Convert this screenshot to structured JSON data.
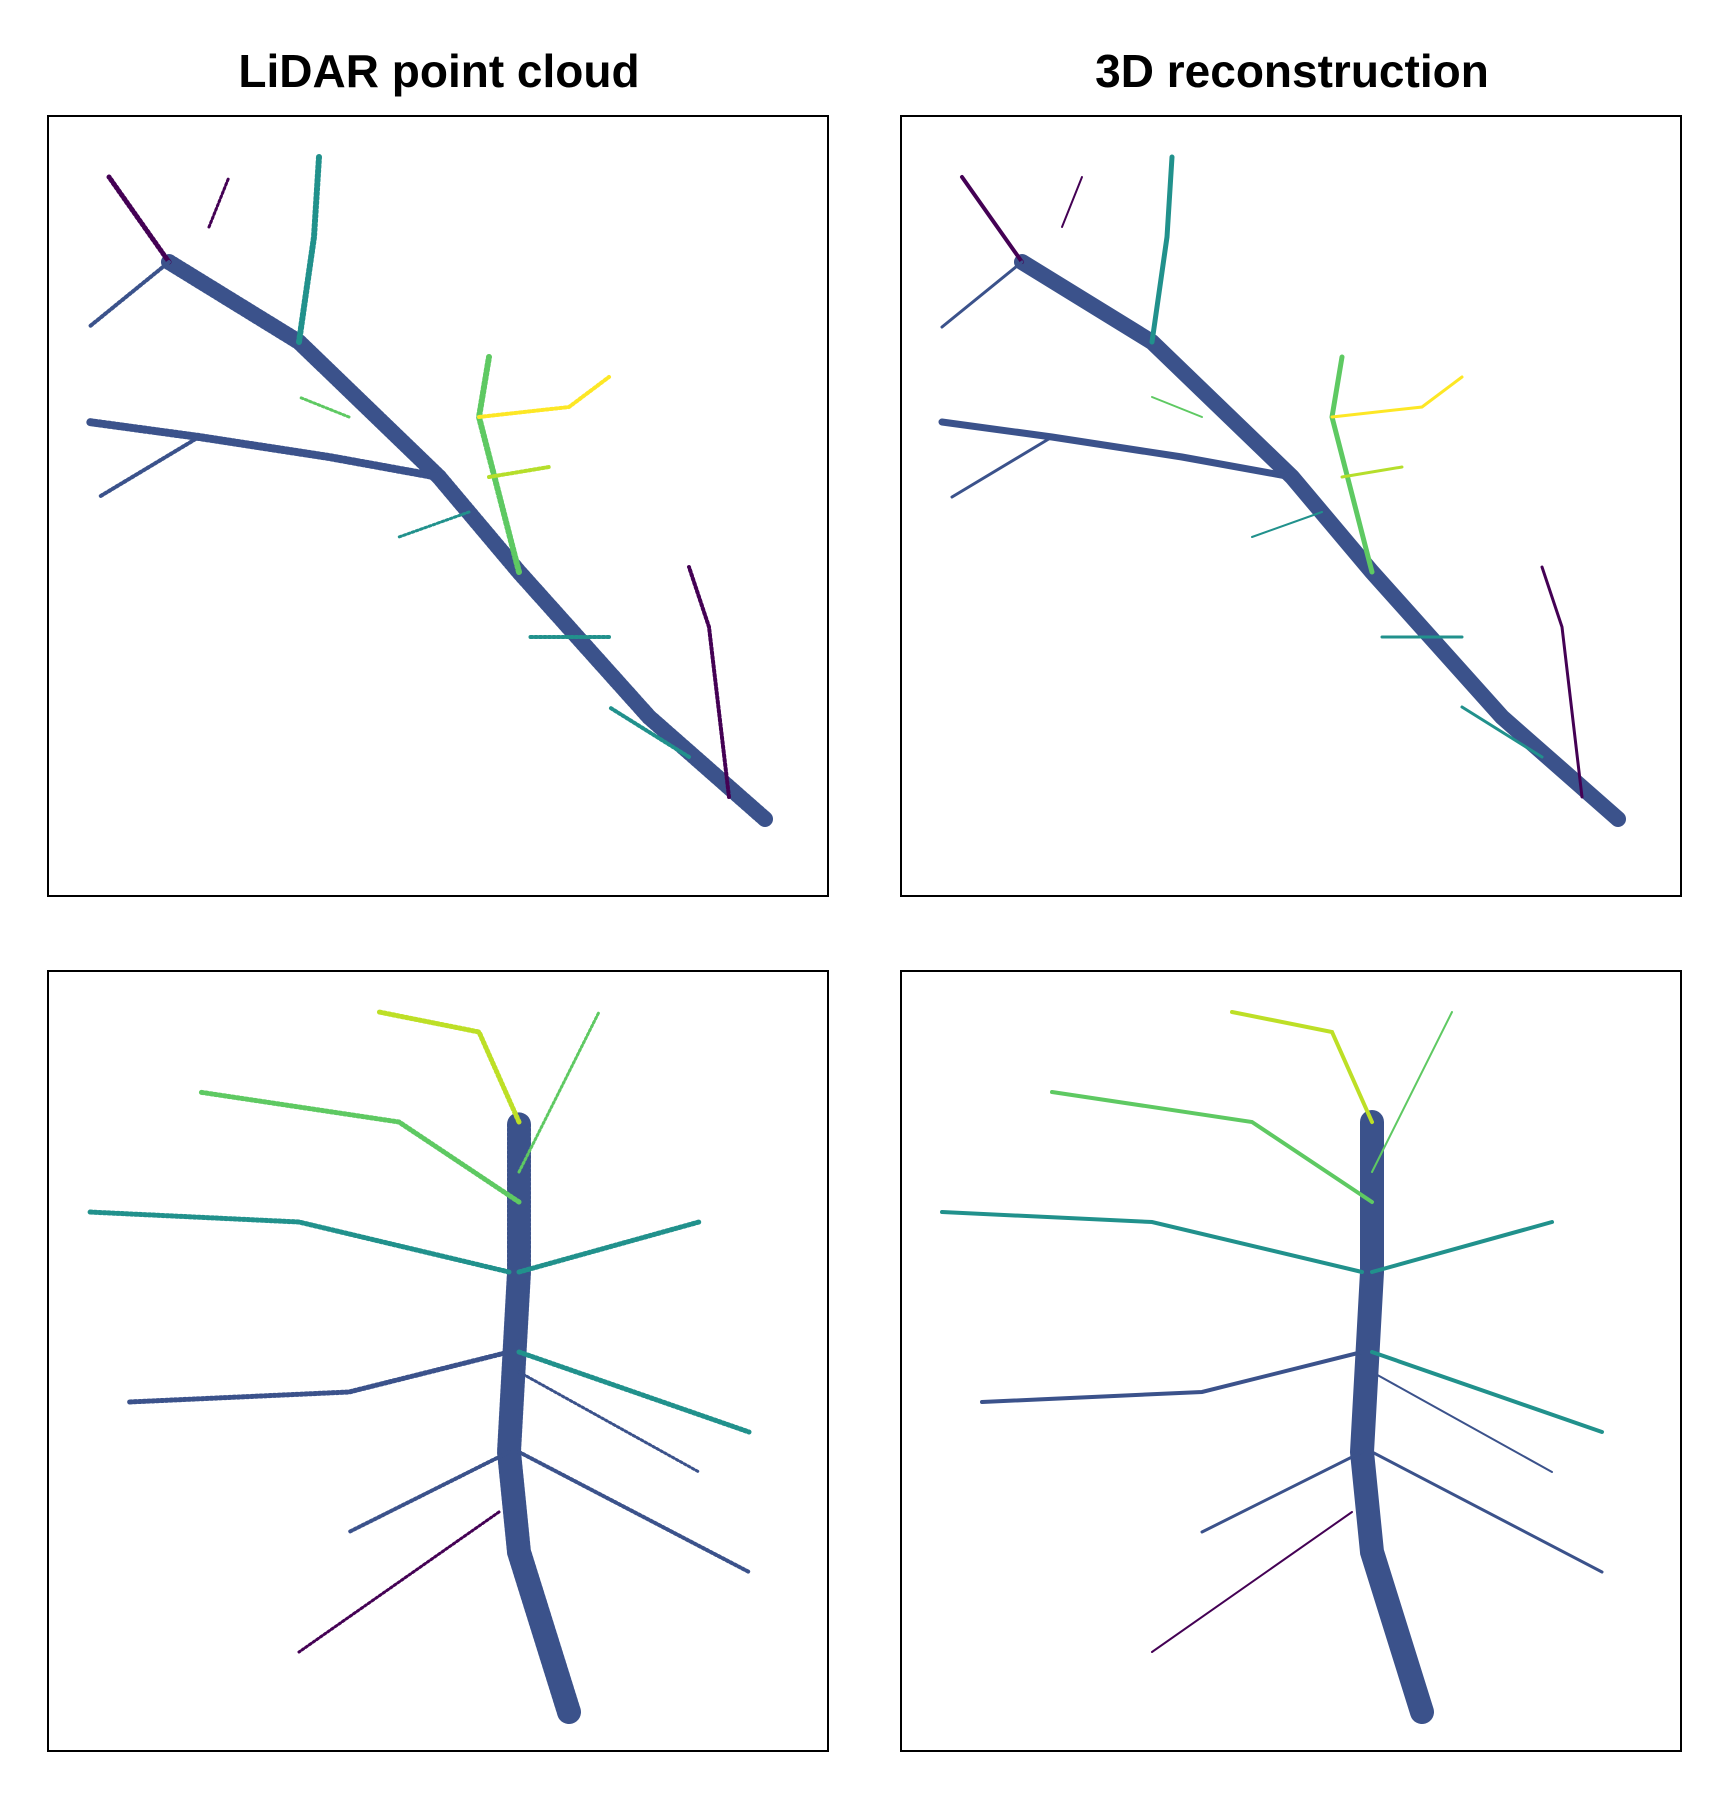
{
  "figure": {
    "columns": [
      {
        "title": "LiDAR point cloud"
      },
      {
        "title": "3D reconstruction"
      }
    ],
    "colormap": [
      "#440154",
      "#3b528b",
      "#21918c",
      "#5ec962",
      "#fde725"
    ]
  }
}
